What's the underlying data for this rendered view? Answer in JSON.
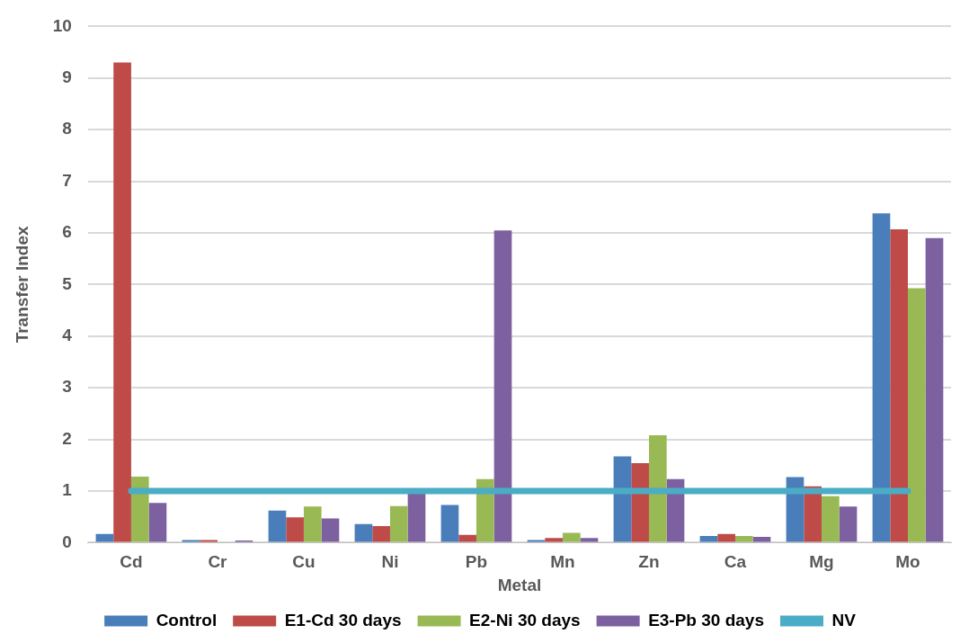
{
  "chart_data": {
    "type": "bar",
    "xlabel": "Metal",
    "ylabel": "Transfer Index",
    "categories": [
      "Cd",
      "Cr",
      "Cu",
      "Ni",
      "Pb",
      "Mn",
      "Zn",
      "Ca",
      "Mg",
      "Mo"
    ],
    "series": [
      {
        "name": "Control",
        "color": "#4a7ebb",
        "values": [
          0.17,
          0.05,
          0.62,
          0.36,
          0.73,
          0.05,
          1.67,
          0.13,
          1.27,
          6.38
        ]
      },
      {
        "name": "E1-Cd 30 days",
        "color": "#be4b48",
        "values": [
          9.3,
          0.05,
          0.49,
          0.32,
          0.15,
          0.09,
          1.54,
          0.17,
          1.09,
          6.07
        ]
      },
      {
        "name": "E2-Ni 30 days",
        "color": "#98b954",
        "values": [
          1.28,
          0,
          0.7,
          0.71,
          1.23,
          0.19,
          2.08,
          0.13,
          0.9,
          4.93
        ]
      },
      {
        "name": "E3-Pb 30 days",
        "color": "#7d60a0",
        "values": [
          0.77,
          0.04,
          0.47,
          0.95,
          6.05,
          0.09,
          1.23,
          0.11,
          0.7,
          5.9
        ]
      },
      {
        "name": "NV",
        "type": "line",
        "color": "#4bacc6",
        "values": [
          1,
          1,
          1,
          1,
          1,
          1,
          1,
          1,
          1,
          1
        ]
      }
    ],
    "ylim": [
      0,
      10
    ],
    "yticks": [
      0,
      1,
      2,
      3,
      4,
      5,
      6,
      7,
      8,
      9,
      10
    ],
    "grid": "y",
    "legend": "bottom",
    "marker": "none",
    "line_style": "solid"
  }
}
